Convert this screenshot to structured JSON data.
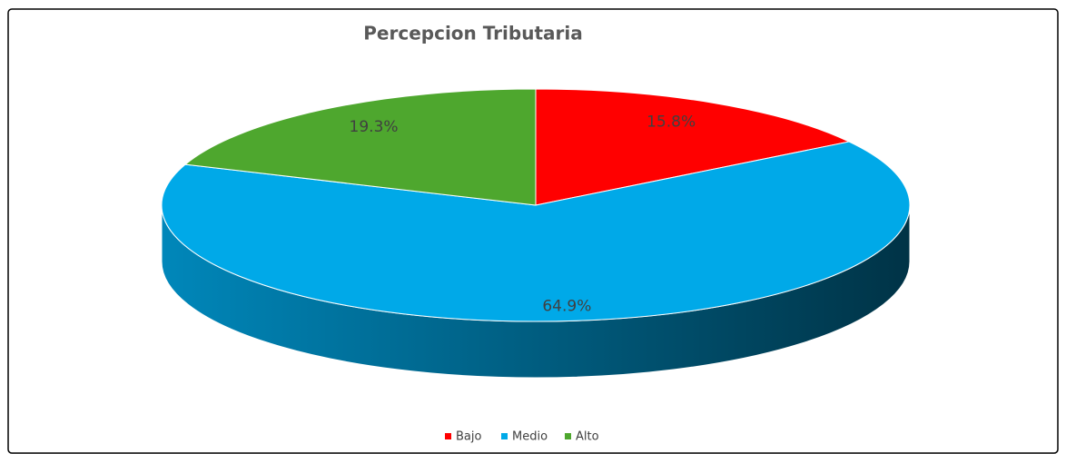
{
  "chart_data": {
    "type": "pie",
    "title": "Percepcion Tributaria",
    "categories": [
      "Bajo",
      "Medio",
      "Alto"
    ],
    "values": [
      15.8,
      64.9,
      19.3
    ],
    "value_labels": [
      "15.8%",
      "64.9%",
      "19.3%"
    ],
    "colors": [
      "#ff0000",
      "#00a9e8",
      "#4ea72e"
    ],
    "legend": "bottom"
  }
}
